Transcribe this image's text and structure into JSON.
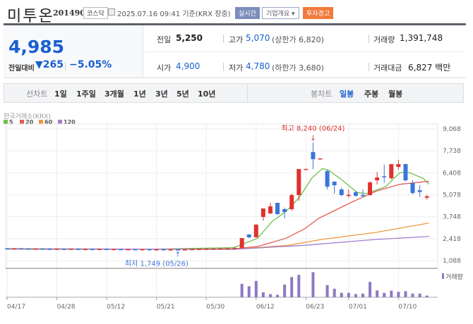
{
  "header": {
    "name": "미투온",
    "code": "201490",
    "market_badge": "코스닥",
    "datetime": "2025.07.16 09:41 기준(KRX 장중)",
    "realtime_btn": "실시간",
    "overview_btn": "기업개요 ▾",
    "warning_badge": "투자경고"
  },
  "quote": {
    "price": "4,985",
    "change_label": "전일대비",
    "change_icon": "triangle-down",
    "change": "265",
    "change_pct": "−5.05%",
    "prev_label": "전일",
    "prev": "5,250",
    "high_label": "고가",
    "high": "5,070",
    "upper_limit": "(상한가 6,820)",
    "volume_label": "거래량",
    "volume": "1,391,748",
    "open_label": "시가",
    "open": "4,900",
    "low_label": "저가",
    "low": "4,780",
    "lower_limit": "(하한가 3,680)",
    "value_label": "거래대금",
    "value": "6,827 백만"
  },
  "toolbar": {
    "line_label": "선차트",
    "line_periods": [
      "1일",
      "1주일",
      "3개월",
      "1년",
      "3년",
      "5년",
      "10년"
    ],
    "candle_label": "봉차트",
    "candle_periods": [
      "일봉",
      "주봉",
      "월봉"
    ],
    "active_candle": "일봉"
  },
  "colors": {
    "up": "#e0312e",
    "down": "#3a75d8",
    "ma5": "#6cc04a",
    "ma20": "#e55a5a",
    "ma60": "#f0983a",
    "ma120": "#a07ed0",
    "volume": "#8e78c2",
    "accent": "#1a5fd0"
  },
  "chart_data": {
    "type": "candlestick",
    "exchange": "한국거래소(KRX)",
    "legend": [
      "5",
      "20",
      "60",
      "120"
    ],
    "y_ticks": [
      9068,
      7738,
      6408,
      5078,
      3748,
      2418,
      1088
    ],
    "y_tick_labels": [
      "9,068",
      "7,738",
      "6,408",
      "5,078",
      "3,748",
      "2,418",
      "1,088"
    ],
    "ylim": [
      1088,
      9068
    ],
    "x_ticks": [
      {
        "index": 0,
        "label": "04/17"
      },
      {
        "index": 7,
        "label": "04/28"
      },
      {
        "index": 14,
        "label": "05/12"
      },
      {
        "index": 21,
        "label": "05/21"
      },
      {
        "index": 28,
        "label": "05/30"
      },
      {
        "index": 35,
        "label": "06/12"
      },
      {
        "index": 42,
        "label": "06/23"
      },
      {
        "index": 48,
        "label": "07/01"
      },
      {
        "index": 55,
        "label": "07/10"
      }
    ],
    "max_label": "최고 8,240 (06/24)",
    "max": {
      "index": 43,
      "value": 8240
    },
    "min_label": "최저 1,749 (05/26)",
    "min": {
      "index": 24,
      "value": 1749
    },
    "volume_label": "거래량",
    "candles_ohlc": [
      [
        1830,
        1850,
        1800,
        1810
      ],
      [
        1810,
        1840,
        1800,
        1830
      ],
      [
        1830,
        1840,
        1800,
        1810
      ],
      [
        1810,
        1830,
        1790,
        1800
      ],
      [
        1800,
        1820,
        1790,
        1810
      ],
      [
        1810,
        1830,
        1790,
        1800
      ],
      [
        1800,
        1820,
        1780,
        1790
      ],
      [
        1790,
        1810,
        1780,
        1800
      ],
      [
        1800,
        1810,
        1780,
        1790
      ],
      [
        1790,
        1810,
        1780,
        1800
      ],
      [
        1800,
        1810,
        1770,
        1780
      ],
      [
        1780,
        1800,
        1770,
        1790
      ],
      [
        1790,
        1800,
        1770,
        1780
      ],
      [
        1780,
        1800,
        1770,
        1790
      ],
      [
        1790,
        1800,
        1770,
        1780
      ],
      [
        1780,
        1790,
        1770,
        1785
      ],
      [
        1785,
        1790,
        1765,
        1775
      ],
      [
        1775,
        1790,
        1765,
        1780
      ],
      [
        1780,
        1790,
        1760,
        1770
      ],
      [
        1770,
        1785,
        1760,
        1775
      ],
      [
        1775,
        1785,
        1755,
        1765
      ],
      [
        1765,
        1780,
        1755,
        1770
      ],
      [
        1770,
        1780,
        1750,
        1760
      ],
      [
        1760,
        1775,
        1750,
        1765
      ],
      [
        1765,
        1775,
        1749,
        1755
      ],
      [
        1755,
        1775,
        1750,
        1770
      ],
      [
        1770,
        1790,
        1760,
        1785
      ],
      [
        1785,
        1800,
        1770,
        1795
      ],
      [
        1795,
        1810,
        1780,
        1800
      ],
      [
        1800,
        1820,
        1790,
        1810
      ],
      [
        1810,
        1830,
        1800,
        1820
      ],
      [
        1820,
        1840,
        1800,
        1830
      ],
      [
        1830,
        1880,
        1820,
        1860
      ],
      [
        1860,
        2470,
        1850,
        2450
      ],
      [
        2670,
        2700,
        2450,
        2500
      ],
      [
        2500,
        3300,
        2480,
        3265
      ],
      [
        3734,
        4250,
        3500,
        4246
      ],
      [
        3948,
        4588,
        3900,
        4374
      ],
      [
        4588,
        4600,
        3850,
        3905
      ],
      [
        4204,
        4300,
        3649,
        4033
      ],
      [
        4204,
        5150,
        4100,
        5057
      ],
      [
        5057,
        6636,
        4716,
        6636
      ],
      [
        6636,
        6650,
        6620,
        6640
      ],
      [
        7660,
        8240,
        6636,
        7233
      ],
      [
        7276,
        7290,
        7260,
        7280
      ],
      [
        6508,
        6600,
        5400,
        5569
      ],
      [
        5868,
        5900,
        5142,
        5654
      ],
      [
        5398,
        5500,
        5000,
        5057
      ],
      [
        5040,
        5400,
        4900,
        5070
      ],
      [
        5228,
        5300,
        4950,
        5014
      ],
      [
        5060,
        5400,
        4900,
        5040
      ],
      [
        5057,
        5900,
        5000,
        5825
      ],
      [
        5953,
        6450,
        5700,
        6124
      ],
      [
        6200,
        6900,
        5800,
        6180
      ],
      [
        6081,
        6934,
        6000,
        6934
      ],
      [
        6764,
        7200,
        6600,
        6934
      ],
      [
        6934,
        6950,
        5900,
        5953
      ],
      [
        5782,
        5950,
        5100,
        5185
      ],
      [
        5350,
        5650,
        4950,
        5250
      ],
      [
        4900,
        5070,
        4780,
        4985
      ]
    ],
    "volumes": [
      [
        33,
        55
      ],
      [
        34,
        45
      ],
      [
        35,
        67
      ],
      [
        36,
        20
      ],
      [
        37,
        13
      ],
      [
        38,
        10
      ],
      [
        39,
        52
      ],
      [
        40,
        83
      ],
      [
        41,
        92
      ],
      [
        43,
        103
      ],
      [
        45,
        50
      ],
      [
        46,
        35
      ],
      [
        47,
        18
      ],
      [
        48,
        18
      ],
      [
        49,
        13
      ],
      [
        50,
        15
      ],
      [
        51,
        63
      ],
      [
        52,
        28
      ],
      [
        53,
        18
      ],
      [
        54,
        27
      ],
      [
        55,
        22
      ],
      [
        56,
        25
      ],
      [
        57,
        15
      ],
      [
        58,
        15
      ],
      [
        59,
        7
      ]
    ],
    "ma": {
      "5": [
        [
          0,
          1820
        ],
        [
          20,
          1780
        ],
        [
          31.8,
          1870
        ],
        [
          35.2,
          2440
        ],
        [
          37.2,
          3435
        ],
        [
          39.2,
          4076
        ],
        [
          40.2,
          4502
        ],
        [
          41.2,
          5000
        ],
        [
          42.8,
          6067
        ],
        [
          44.3,
          6665
        ],
        [
          45.2,
          6565
        ],
        [
          47.2,
          5925
        ],
        [
          49.2,
          5214
        ],
        [
          50.5,
          5142
        ],
        [
          53.2,
          5569
        ],
        [
          55.2,
          6422
        ],
        [
          56.5,
          6422
        ],
        [
          58.5,
          6067
        ],
        [
          59.3,
          5711
        ]
      ],
      "20": [
        [
          0,
          1800
        ],
        [
          20,
          1780
        ],
        [
          31.8,
          1800
        ],
        [
          35.2,
          1940
        ],
        [
          39.2,
          2440
        ],
        [
          41.8,
          3009
        ],
        [
          43.8,
          3649
        ],
        [
          48.5,
          4645
        ],
        [
          51.8,
          5285
        ],
        [
          55.2,
          5711
        ],
        [
          59.3,
          5896
        ]
      ],
      "60": [
        [
          0,
          1790
        ],
        [
          20,
          1780
        ],
        [
          31.8,
          1771
        ],
        [
          39.5,
          2013
        ],
        [
          44.2,
          2369
        ],
        [
          51.8,
          2795
        ],
        [
          59.3,
          3365
        ]
      ],
      "120": [
        [
          0,
          1790
        ],
        [
          20,
          1780
        ],
        [
          31.8,
          1771
        ],
        [
          41.8,
          2013
        ],
        [
          51.8,
          2369
        ],
        [
          59.3,
          2554
        ]
      ]
    }
  }
}
